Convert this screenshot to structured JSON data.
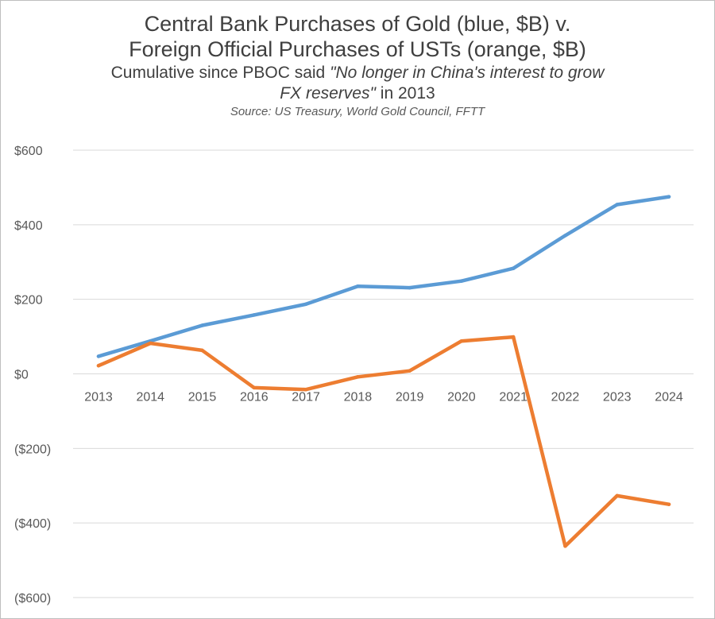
{
  "title": {
    "line1": "Central Bank Purchases of Gold (blue, $B) v.",
    "line2": "Foreign Official Purchases of USTs (orange, $B)",
    "sub1_prefix": "Cumulative since PBOC said ",
    "sub1_quote": "\"No longer in China's interest to grow",
    "sub2_quote": "FX reserves\"",
    "sub2_suffix": " in 2013",
    "source": "Source: US Treasury, World Gold Council, FFTT"
  },
  "chart_data": {
    "type": "line",
    "title": "Central Bank Purchases of Gold (blue, $B) v. Foreign Official Purchases of USTs (orange, $B)",
    "subtitle": "Cumulative since PBOC said \"No longer in China's interest to grow FX reserves\" in 2013",
    "source": "Source: US Treasury, World Gold Council, FFTT",
    "categories": [
      "2013",
      "2014",
      "2015",
      "2016",
      "2017",
      "2018",
      "2019",
      "2020",
      "2021",
      "2022",
      "2023",
      "2024"
    ],
    "series": [
      {
        "name": "Central Bank Purchases of Gold",
        "color": "#5b9bd5",
        "values": [
          47,
          88,
          130,
          158,
          187,
          235,
          231,
          249,
          283,
          371,
          454,
          475
        ]
      },
      {
        "name": "Foreign Official Purchases of USTs",
        "color": "#ed7d31",
        "values": [
          22,
          82,
          63,
          -37,
          -42,
          -8,
          8,
          88,
          99,
          -462,
          -327,
          -350
        ]
      }
    ],
    "ylim": [
      -600,
      600
    ],
    "yticks": [
      600,
      400,
      200,
      0,
      -200,
      -400,
      -600
    ],
    "ytick_labels": [
      "$600",
      "$400",
      "$200",
      "$0",
      "($200)",
      "($400)",
      "($600)"
    ],
    "grid": true,
    "xlabel": "",
    "ylabel": ""
  }
}
